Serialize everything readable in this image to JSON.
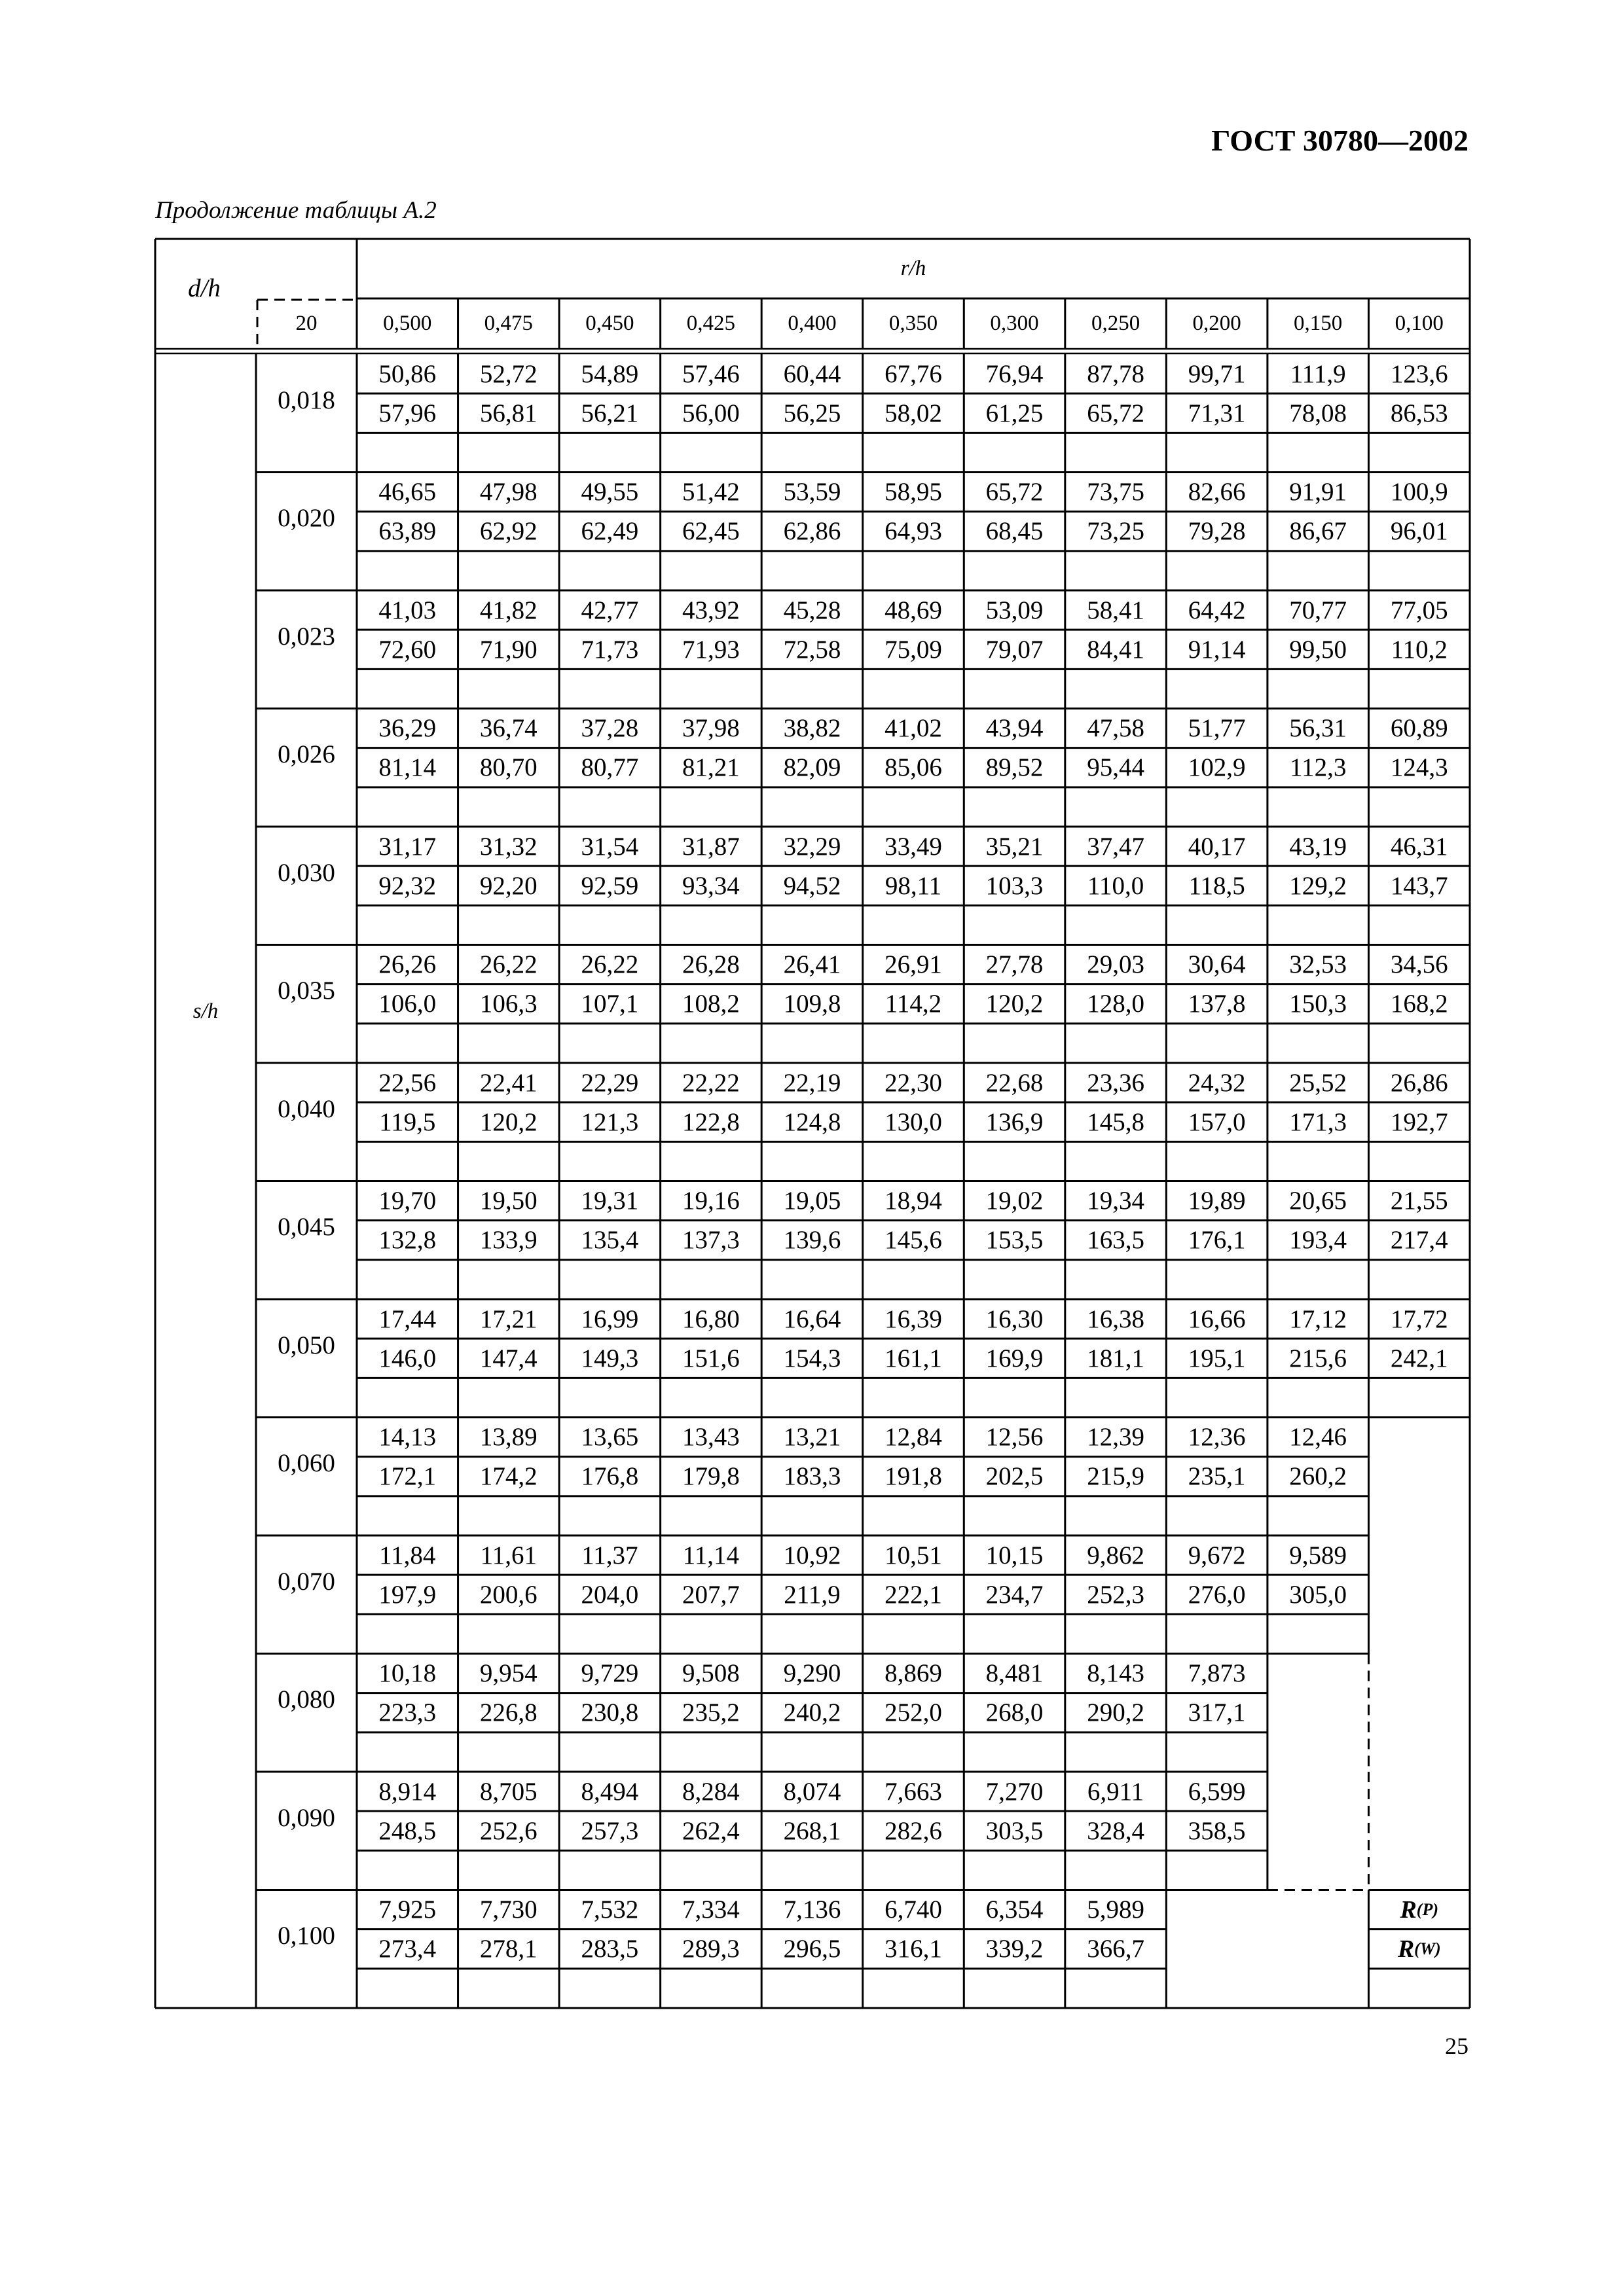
{
  "header": {
    "doc_title": "ГОСТ 30780—2002",
    "subtitle": "Продолжение таблицы А.2",
    "page_number": "25"
  },
  "table": {
    "corner_label": "d/h",
    "corner_value": "20",
    "column_group_label": "r/h",
    "row_group_label": "s/h",
    "columns": [
      "0,500",
      "0,475",
      "0,450",
      "0,425",
      "0,400",
      "0,350",
      "0,300",
      "0,250",
      "0,200",
      "0,150",
      "0,100"
    ],
    "rows": [
      {
        "s_h": "0,018",
        "p": [
          "50,86",
          "52,72",
          "54,89",
          "57,46",
          "60,44",
          "67,76",
          "76,94",
          "87,78",
          "99,71",
          "111,9",
          "123,6"
        ],
        "w": [
          "57,96",
          "56,81",
          "56,21",
          "56,00",
          "56,25",
          "58,02",
          "61,25",
          "65,72",
          "71,31",
          "78,08",
          "86,53"
        ]
      },
      {
        "s_h": "0,020",
        "p": [
          "46,65",
          "47,98",
          "49,55",
          "51,42",
          "53,59",
          "58,95",
          "65,72",
          "73,75",
          "82,66",
          "91,91",
          "100,9"
        ],
        "w": [
          "63,89",
          "62,92",
          "62,49",
          "62,45",
          "62,86",
          "64,93",
          "68,45",
          "73,25",
          "79,28",
          "86,67",
          "96,01"
        ]
      },
      {
        "s_h": "0,023",
        "p": [
          "41,03",
          "41,82",
          "42,77",
          "43,92",
          "45,28",
          "48,69",
          "53,09",
          "58,41",
          "64,42",
          "70,77",
          "77,05"
        ],
        "w": [
          "72,60",
          "71,90",
          "71,73",
          "71,93",
          "72,58",
          "75,09",
          "79,07",
          "84,41",
          "91,14",
          "99,50",
          "110,2"
        ]
      },
      {
        "s_h": "0,026",
        "p": [
          "36,29",
          "36,74",
          "37,28",
          "37,98",
          "38,82",
          "41,02",
          "43,94",
          "47,58",
          "51,77",
          "56,31",
          "60,89"
        ],
        "w": [
          "81,14",
          "80,70",
          "80,77",
          "81,21",
          "82,09",
          "85,06",
          "89,52",
          "95,44",
          "102,9",
          "112,3",
          "124,3"
        ]
      },
      {
        "s_h": "0,030",
        "p": [
          "31,17",
          "31,32",
          "31,54",
          "31,87",
          "32,29",
          "33,49",
          "35,21",
          "37,47",
          "40,17",
          "43,19",
          "46,31"
        ],
        "w": [
          "92,32",
          "92,20",
          "92,59",
          "93,34",
          "94,52",
          "98,11",
          "103,3",
          "110,0",
          "118,5",
          "129,2",
          "143,7"
        ]
      },
      {
        "s_h": "0,035",
        "p": [
          "26,26",
          "26,22",
          "26,22",
          "26,28",
          "26,41",
          "26,91",
          "27,78",
          "29,03",
          "30,64",
          "32,53",
          "34,56"
        ],
        "w": [
          "106,0",
          "106,3",
          "107,1",
          "108,2",
          "109,8",
          "114,2",
          "120,2",
          "128,0",
          "137,8",
          "150,3",
          "168,2"
        ]
      },
      {
        "s_h": "0,040",
        "p": [
          "22,56",
          "22,41",
          "22,29",
          "22,22",
          "22,19",
          "22,30",
          "22,68",
          "23,36",
          "24,32",
          "25,52",
          "26,86"
        ],
        "w": [
          "119,5",
          "120,2",
          "121,3",
          "122,8",
          "124,8",
          "130,0",
          "136,9",
          "145,8",
          "157,0",
          "171,3",
          "192,7"
        ]
      },
      {
        "s_h": "0,045",
        "p": [
          "19,70",
          "19,50",
          "19,31",
          "19,16",
          "19,05",
          "18,94",
          "19,02",
          "19,34",
          "19,89",
          "20,65",
          "21,55"
        ],
        "w": [
          "132,8",
          "133,9",
          "135,4",
          "137,3",
          "139,6",
          "145,6",
          "153,5",
          "163,5",
          "176,1",
          "193,4",
          "217,4"
        ]
      },
      {
        "s_h": "0,050",
        "p": [
          "17,44",
          "17,21",
          "16,99",
          "16,80",
          "16,64",
          "16,39",
          "16,30",
          "16,38",
          "16,66",
          "17,12",
          "17,72"
        ],
        "w": [
          "146,0",
          "147,4",
          "149,3",
          "151,6",
          "154,3",
          "161,1",
          "169,9",
          "181,1",
          "195,1",
          "215,6",
          "242,1"
        ]
      },
      {
        "s_h": "0,060",
        "p": [
          "14,13",
          "13,89",
          "13,65",
          "13,43",
          "13,21",
          "12,84",
          "12,56",
          "12,39",
          "12,36",
          "12,46"
        ],
        "w": [
          "172,1",
          "174,2",
          "176,8",
          "179,8",
          "183,3",
          "191,8",
          "202,5",
          "215,9",
          "235,1",
          "260,2"
        ]
      },
      {
        "s_h": "0,070",
        "p": [
          "11,84",
          "11,61",
          "11,37",
          "11,14",
          "10,92",
          "10,51",
          "10,15",
          "9,862",
          "9,672",
          "9,589"
        ],
        "w": [
          "197,9",
          "200,6",
          "204,0",
          "207,7",
          "211,9",
          "222,1",
          "234,7",
          "252,3",
          "276,0",
          "305,0"
        ]
      },
      {
        "s_h": "0,080",
        "p": [
          "10,18",
          "9,954",
          "9,729",
          "9,508",
          "9,290",
          "8,869",
          "8,481",
          "8,143",
          "7,873"
        ],
        "w": [
          "223,3",
          "226,8",
          "230,8",
          "235,2",
          "240,2",
          "252,0",
          "268,0",
          "290,2",
          "317,1"
        ]
      },
      {
        "s_h": "0,090",
        "p": [
          "8,914",
          "8,705",
          "8,494",
          "8,284",
          "8,074",
          "7,663",
          "7,270",
          "6,911",
          "6,599"
        ],
        "w": [
          "248,5",
          "252,6",
          "257,3",
          "262,4",
          "268,1",
          "282,6",
          "303,5",
          "328,4",
          "358,5"
        ]
      },
      {
        "s_h": "0,100",
        "p": [
          "7,925",
          "7,730",
          "7,532",
          "7,334",
          "7,136",
          "6,740",
          "6,354",
          "5,989"
        ],
        "w": [
          "273,4",
          "278,1",
          "283,5",
          "289,3",
          "296,5",
          "316,1",
          "339,2",
          "366,7"
        ]
      }
    ],
    "legend": [
      {
        "main": "R",
        "sub": "(P)"
      },
      {
        "main": "R",
        "sub": "(W)"
      }
    ]
  }
}
